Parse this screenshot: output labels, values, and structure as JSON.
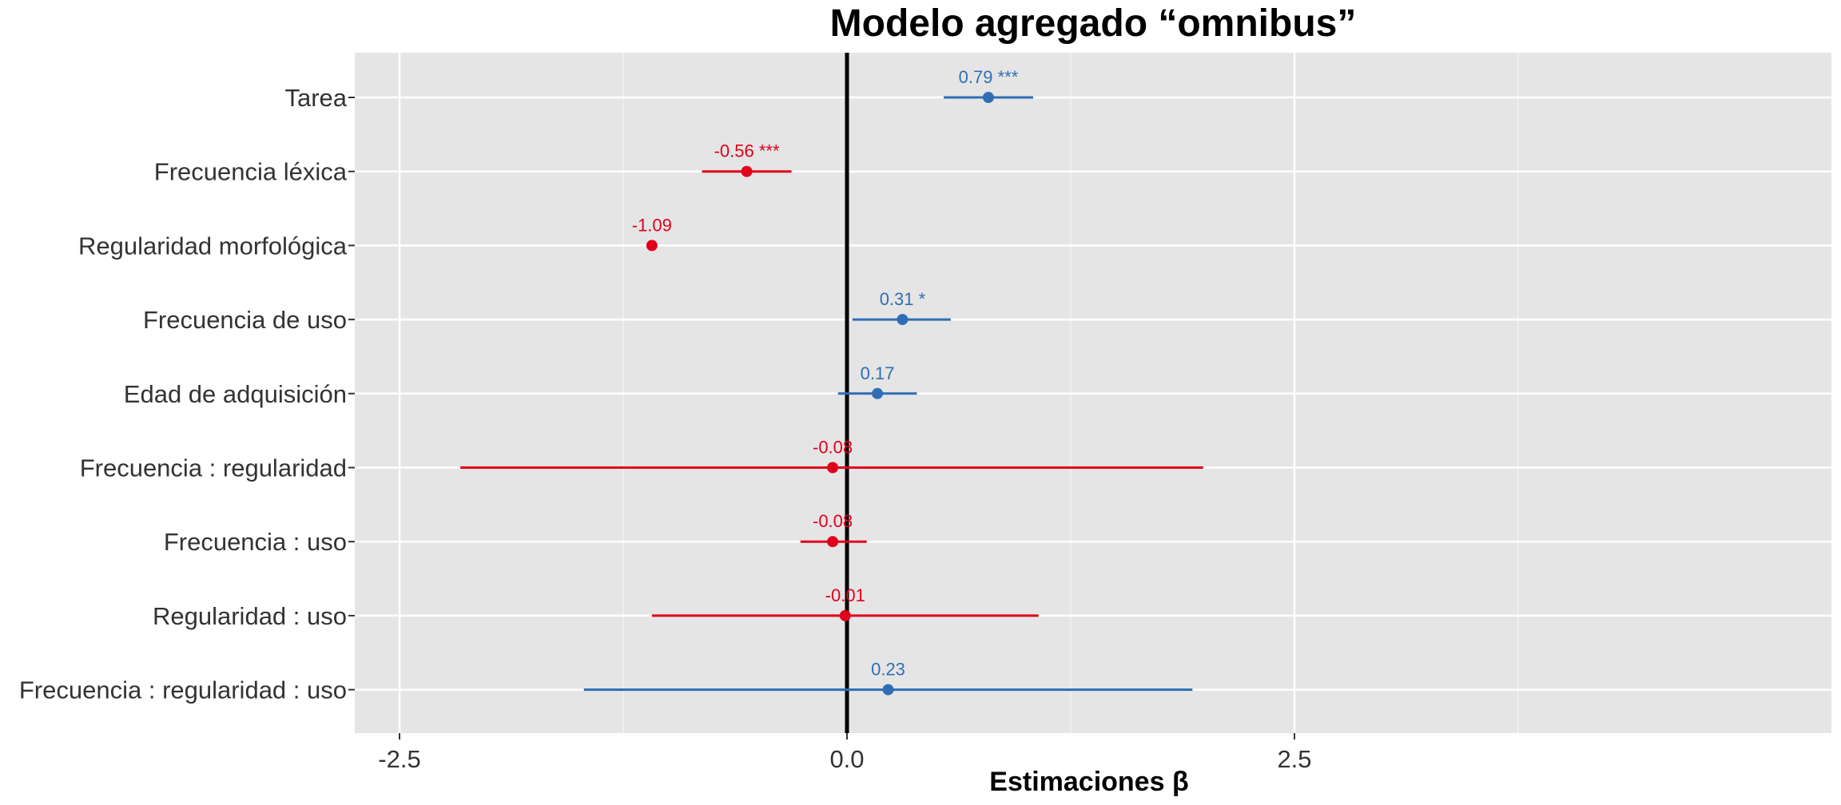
{
  "chart_data": {
    "type": "forest",
    "title": "Modelo agregado “omnibus”",
    "xlabel": "Estimaciones β",
    "ylabel": "",
    "xlim": [
      -2.75,
      5.5
    ],
    "xticks": [
      -2.5,
      0.0,
      2.5
    ],
    "xtick_labels": [
      "-2.5",
      "0.0",
      "2.5"
    ],
    "grid": true,
    "reference_line": 0,
    "colors": {
      "positive": "#2f6eb4",
      "negative": "#e0001b",
      "reference": "#000000",
      "panel": "#e5e5e5"
    },
    "rows": [
      {
        "term": "Tarea",
        "estimate": 0.79,
        "ci": [
          0.54,
          1.04
        ],
        "label": "0.79 ***"
      },
      {
        "term": "Frecuencia léxica",
        "estimate": -0.56,
        "ci": [
          -0.81,
          -0.31
        ],
        "label": "-0.56 ***"
      },
      {
        "term": "Regularidad morfológica",
        "estimate": -1.09,
        "ci": null,
        "label": "-1.09"
      },
      {
        "term": "Frecuencia de uso",
        "estimate": 0.31,
        "ci": [
          0.03,
          0.58
        ],
        "label": "0.31 *"
      },
      {
        "term": "Edad de adquisición",
        "estimate": 0.17,
        "ci": [
          -0.05,
          0.39
        ],
        "label": "0.17"
      },
      {
        "term": "Frecuencia : regularidad",
        "estimate": -0.08,
        "ci": [
          -2.16,
          1.99
        ],
        "label": "-0.08"
      },
      {
        "term": "Frecuencia : uso",
        "estimate": -0.08,
        "ci": [
          -0.26,
          0.11
        ],
        "label": "-0.08"
      },
      {
        "term": "Regularidad : uso",
        "estimate": -0.01,
        "ci": [
          -1.09,
          1.07
        ],
        "label": "-0.01"
      },
      {
        "term": "Frecuencia : regularidad : uso",
        "estimate": 0.23,
        "ci": [
          -1.47,
          1.93
        ],
        "label": "0.23"
      }
    ]
  }
}
